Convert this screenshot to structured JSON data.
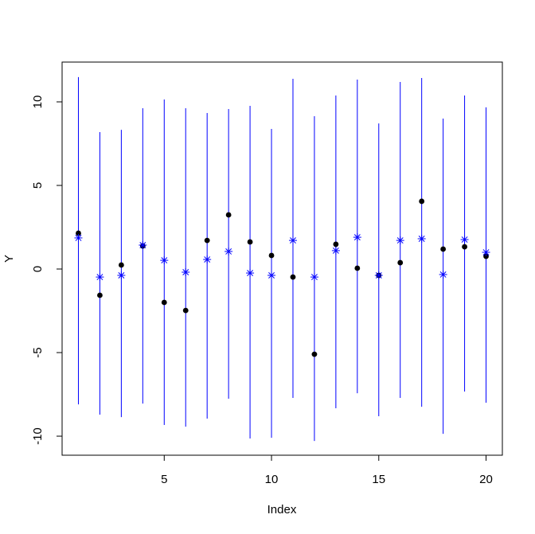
{
  "chart_data": {
    "type": "scatter",
    "x_label": "Index",
    "y_label": "Y",
    "x": [
      1,
      2,
      3,
      4,
      5,
      6,
      7,
      8,
      9,
      10,
      11,
      12,
      13,
      14,
      15,
      16,
      17,
      18,
      19,
      20
    ],
    "series": [
      {
        "color": "#000000",
        "marker": "dot",
        "values": [
          2.14,
          -1.57,
          0.24,
          1.38,
          -2.0,
          -2.48,
          1.71,
          3.24,
          1.62,
          0.81,
          -0.48,
          -5.1,
          1.48,
          0.05,
          -0.38,
          0.38,
          4.05,
          1.19,
          1.33,
          0.76
        ]
      },
      {
        "color": "#0000ff",
        "marker": "asterisk",
        "values": [
          1.86,
          -0.48,
          -0.38,
          1.43,
          0.52,
          -0.19,
          0.57,
          1.05,
          -0.24,
          -0.38,
          1.71,
          -0.48,
          1.1,
          1.9,
          -0.38,
          1.71,
          1.81,
          -0.33,
          1.76,
          1.0
        ]
      }
    ],
    "intervals": {
      "color": "#0000ff",
      "lower": [
        -8.1,
        -8.71,
        -8.86,
        -8.05,
        -9.33,
        -9.43,
        -8.95,
        -7.76,
        -10.14,
        -10.1,
        -7.71,
        -10.29,
        -8.33,
        -7.43,
        -8.81,
        -7.71,
        -8.24,
        -9.86,
        -7.33,
        -8.0
      ],
      "upper": [
        11.48,
        8.19,
        8.33,
        9.62,
        10.14,
        9.62,
        9.33,
        9.57,
        9.76,
        8.38,
        11.38,
        9.14,
        10.38,
        11.33,
        8.71,
        11.19,
        11.43,
        9.0,
        10.38,
        9.67
      ]
    },
    "xlim": [
      0.24,
      20.76
    ],
    "ylim": [
      -11.14,
      12.38
    ],
    "xticks": [
      5,
      10,
      15,
      20
    ],
    "yticks": [
      -10,
      -5,
      0,
      5,
      10
    ]
  }
}
